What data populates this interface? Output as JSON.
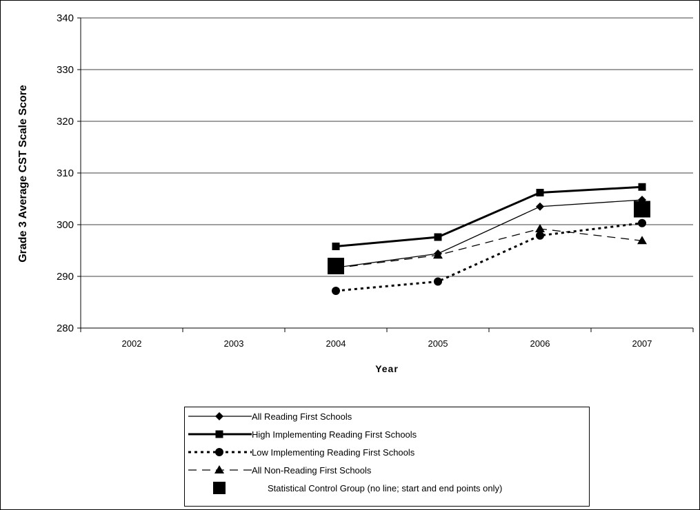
{
  "chart_data": {
    "type": "line",
    "title": "",
    "xlabel": "Year",
    "ylabel": "Grade 3 Average CST Scale Score",
    "categories": [
      "2002",
      "2003",
      "2004",
      "2005",
      "2006",
      "2007"
    ],
    "ylim": [
      280,
      340
    ],
    "yticks": [
      280,
      290,
      300,
      310,
      320,
      330,
      340
    ],
    "grid": true,
    "legend_position": "bottom",
    "series": [
      {
        "name": "All Reading First Schools",
        "values": [
          null,
          null,
          291.7,
          294.4,
          303.5,
          304.8
        ],
        "line": "solid-thin",
        "marker": "diamond",
        "color": "#000000"
      },
      {
        "name": "High Implementing Reading First Schools",
        "values": [
          null,
          null,
          295.8,
          297.6,
          306.2,
          307.3
        ],
        "line": "solid-thick",
        "marker": "square",
        "color": "#000000"
      },
      {
        "name": "Low Implementing Reading First Schools",
        "values": [
          null,
          null,
          287.2,
          289.0,
          297.9,
          300.3
        ],
        "line": "dotted-thick",
        "marker": "circle",
        "color": "#000000"
      },
      {
        "name": "All Non-Reading First Schools",
        "values": [
          null,
          null,
          291.6,
          294.1,
          299.2,
          296.9
        ],
        "line": "dashed",
        "marker": "triangle",
        "color": "#000000"
      },
      {
        "name": "Statistical Control Group (no line; start and end points only)",
        "values": [
          null,
          null,
          292.0,
          null,
          null,
          303.0
        ],
        "line": "none",
        "marker": "big-square",
        "color": "#000000"
      }
    ]
  }
}
